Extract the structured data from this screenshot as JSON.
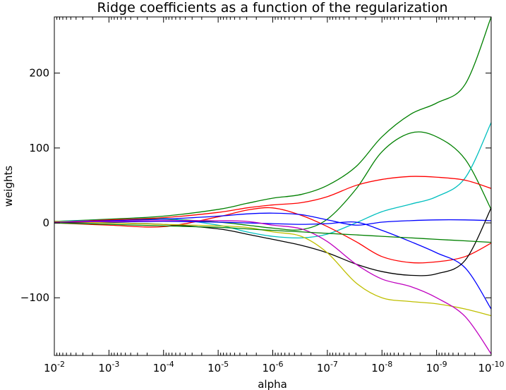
{
  "chart_data": {
    "type": "line",
    "title": "Ridge coefficients as a function of the regularization",
    "xlabel": "alpha",
    "ylabel": "weights",
    "x_scale": "log",
    "x_reversed": true,
    "xlim": [
      0.01,
      1e-10
    ],
    "ylim": [
      -177,
      275
    ],
    "grid": false,
    "x_ticks": [
      {
        "value": 0.01,
        "base": "10",
        "exp": "-2"
      },
      {
        "value": 0.001,
        "base": "10",
        "exp": "-3"
      },
      {
        "value": 0.0001,
        "base": "10",
        "exp": "-4"
      },
      {
        "value": 1e-05,
        "base": "10",
        "exp": "-5"
      },
      {
        "value": 1e-06,
        "base": "10",
        "exp": "-6"
      },
      {
        "value": 1e-07,
        "base": "10",
        "exp": "-7"
      },
      {
        "value": 1e-08,
        "base": "10",
        "exp": "-8"
      },
      {
        "value": 1e-09,
        "base": "10",
        "exp": "-9"
      },
      {
        "value": 1e-10,
        "base": "10",
        "exp": "-10"
      }
    ],
    "y_ticks": [
      {
        "value": 200,
        "label": "200"
      },
      {
        "value": 100,
        "label": "100"
      },
      {
        "value": 0,
        "label": "0"
      },
      {
        "value": -100,
        "label": "−100"
      }
    ],
    "x": [
      0.01,
      0.001,
      0.0001,
      1e-05,
      3e-06,
      1e-06,
      3e-07,
      1e-07,
      3e-08,
      1e-08,
      3e-09,
      1e-09,
      3e-10,
      1e-10
    ],
    "series": [
      {
        "color": "#008000",
        "values": [
          2,
          5,
          9,
          18,
          26,
          33,
          38,
          50,
          75,
          115,
          145,
          160,
          185,
          275
        ]
      },
      {
        "color": "#008000",
        "values": [
          1,
          4,
          5,
          1,
          -3,
          -7,
          -9,
          5,
          45,
          95,
          120,
          115,
          85,
          18
        ]
      },
      {
        "color": "#00bfbf",
        "values": [
          2,
          4,
          6,
          -3,
          -12,
          -18,
          -20,
          -15,
          0,
          15,
          25,
          35,
          60,
          134
        ]
      },
      {
        "color": "#ff0000",
        "values": [
          1,
          4,
          7,
          14,
          20,
          24,
          27,
          35,
          50,
          58,
          62,
          61,
          57,
          46
        ]
      },
      {
        "color": "#ff0000",
        "values": [
          0,
          -3,
          -5,
          8,
          17,
          20,
          10,
          -5,
          -25,
          -45,
          -53,
          -52,
          -45,
          -27
        ]
      },
      {
        "color": "#0000ff",
        "values": [
          1,
          3,
          5,
          9,
          12,
          13,
          11,
          4,
          -3,
          1,
          3,
          4,
          4,
          3
        ]
      },
      {
        "color": "#0000ff",
        "values": [
          0,
          1,
          2,
          1,
          0,
          -1,
          -2,
          -1,
          1,
          -10,
          -25,
          -40,
          -60,
          -115
        ]
      },
      {
        "color": "#000000",
        "values": [
          1,
          0,
          -2,
          -8,
          -15,
          -22,
          -30,
          -40,
          -55,
          -65,
          -70,
          -68,
          -50,
          20
        ]
      },
      {
        "color": "#bfbf00",
        "values": [
          2,
          0,
          -2,
          -4,
          -6,
          -12,
          -18,
          -40,
          -80,
          -100,
          -105,
          -108,
          -115,
          -124
        ]
      },
      {
        "color": "#bf00bf",
        "values": [
          1,
          2,
          3,
          3,
          2,
          -3,
          -8,
          -25,
          -55,
          -75,
          -85,
          -100,
          -125,
          -175
        ]
      },
      {
        "color": "#008000",
        "values": [
          0,
          -2,
          -4,
          -6,
          -8,
          -10,
          -12,
          -14,
          -16,
          -18,
          -20,
          -22,
          -24,
          -26
        ]
      }
    ]
  }
}
